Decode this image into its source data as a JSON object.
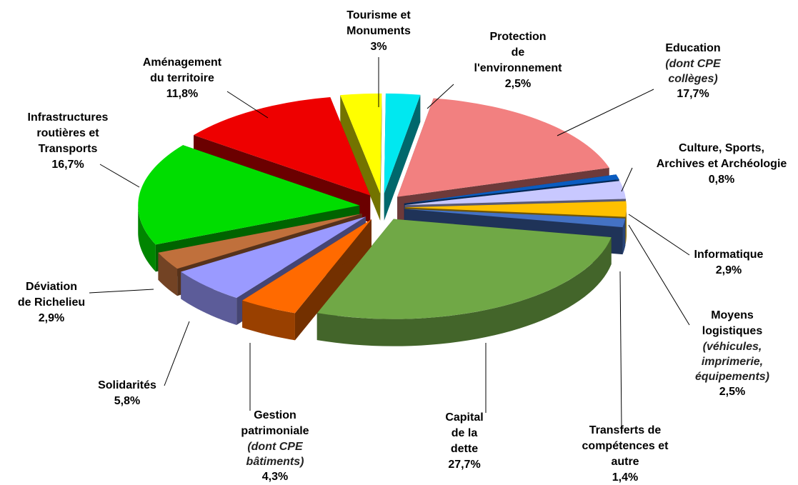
{
  "chart_data": {
    "type": "pie",
    "categories": [
      [
        "Tourisme et",
        "Monuments"
      ],
      [
        "Protection",
        "de",
        "l'environnement"
      ],
      [
        "Education"
      ],
      [
        "Culture, Sports,",
        "Archives et Archéologie"
      ],
      [
        "Informatique"
      ],
      [
        "Moyens",
        "logistiques"
      ],
      [
        "Transferts de",
        "compétences et",
        "autre"
      ],
      [
        "Capital",
        "de la",
        "dette"
      ],
      [
        "Gestion",
        "patrimoniale"
      ],
      [
        "Solidarités"
      ],
      [
        "Déviation",
        "de Richelieu"
      ],
      [
        "Infrastructures",
        "routières et",
        "Transports"
      ],
      [
        "Aménagement",
        "du territoire"
      ]
    ],
    "notes": [
      null,
      null,
      [
        "(dont CPE",
        "collèges)"
      ],
      null,
      null,
      [
        "(véhicules,",
        "imprimerie,",
        "équipements)"
      ],
      null,
      null,
      [
        "(dont CPE",
        "bâtiments)"
      ],
      null,
      null,
      null,
      null
    ],
    "values": [
      3,
      2.5,
      17.7,
      0.8,
      2.9,
      2.5,
      1.4,
      27.7,
      4.3,
      5.8,
      2.9,
      16.7,
      11.8
    ],
    "value_labels": [
      "3%",
      "2,5%",
      "17,7%",
      "0,8%",
      "2,9%",
      "2,5%",
      "1,4%",
      "27,7%",
      "4,3%",
      "5,8%",
      "2,9%",
      "16,7%",
      "11,8%"
    ],
    "colors": [
      "#ffff00",
      "#00e8f0",
      "#f28080",
      "#0a5cc0",
      "#c8c8ff",
      "#ffc000",
      "#4472c4",
      "#70a846",
      "#ff6a00",
      "#9a9aff",
      "#c0703c",
      "#00dd00",
      "#ee0000"
    ]
  }
}
